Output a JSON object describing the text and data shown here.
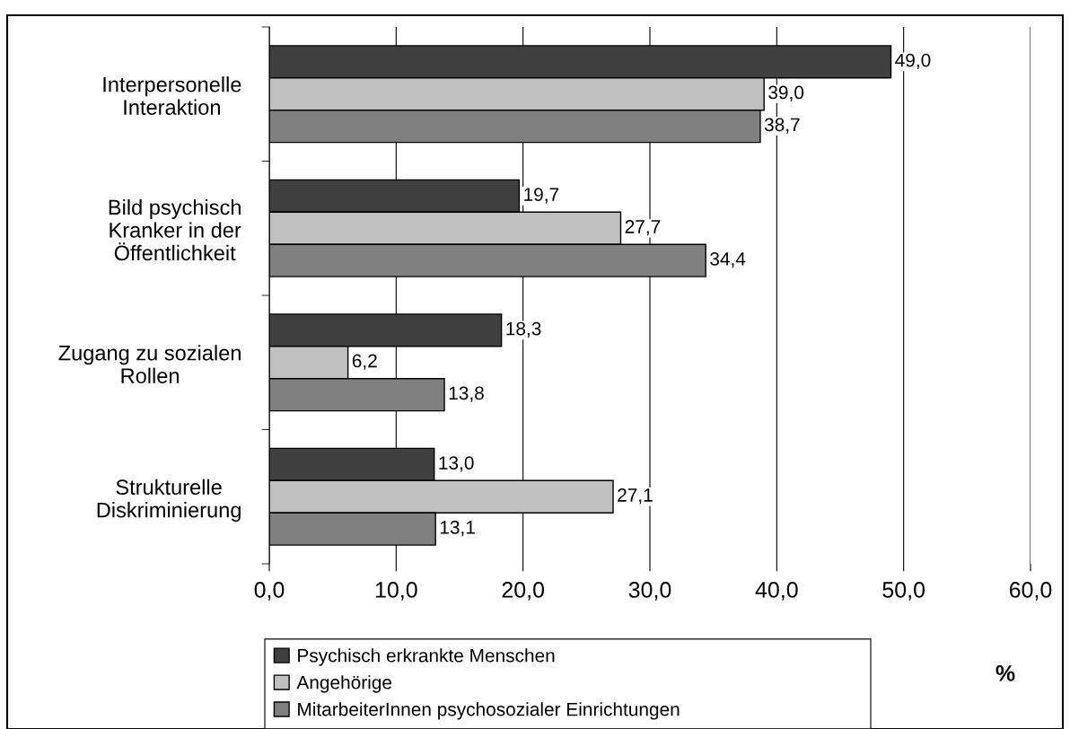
{
  "chart_data": {
    "type": "bar",
    "orientation": "horizontal",
    "categories": [
      "Interpersonelle\nInteraktion",
      "Bild psychisch\nKranker in der\nÖffentlichkeit",
      "Zugang zu sozialen\nRollen",
      "Strukturelle\nDiskriminierung"
    ],
    "series": [
      {
        "name": "Psychisch erkrankte Menschen",
        "color": "#404040",
        "values": [
          49.0,
          19.7,
          18.3,
          13.0
        ],
        "value_labels": [
          "49,0",
          "19,7",
          "18,3",
          "13,0"
        ]
      },
      {
        "name": "Angehörige",
        "color": "#c0c0c0",
        "values": [
          39.0,
          27.7,
          6.2,
          27.1
        ],
        "value_labels": [
          "39,0",
          "27,7",
          "6,2",
          "27,1"
        ]
      },
      {
        "name": "MitarbeiterInnen psychosozialer Einrichtungen",
        "color": "#808080",
        "values": [
          38.7,
          34.4,
          13.8,
          13.1
        ],
        "value_labels": [
          "38,7",
          "34,4",
          "13,8",
          "13,1"
        ]
      }
    ],
    "xlim": [
      0,
      60
    ],
    "xticks": [
      {
        "value": 0,
        "label": "0,0"
      },
      {
        "value": 10,
        "label": "10,0"
      },
      {
        "value": 20,
        "label": "20,0"
      },
      {
        "value": 30,
        "label": "30,0"
      },
      {
        "value": 40,
        "label": "40,0"
      },
      {
        "value": 50,
        "label": "50,0"
      },
      {
        "value": 60,
        "label": "60,0"
      }
    ],
    "xlabel": "%",
    "grid": "x",
    "legend": "bottom"
  }
}
